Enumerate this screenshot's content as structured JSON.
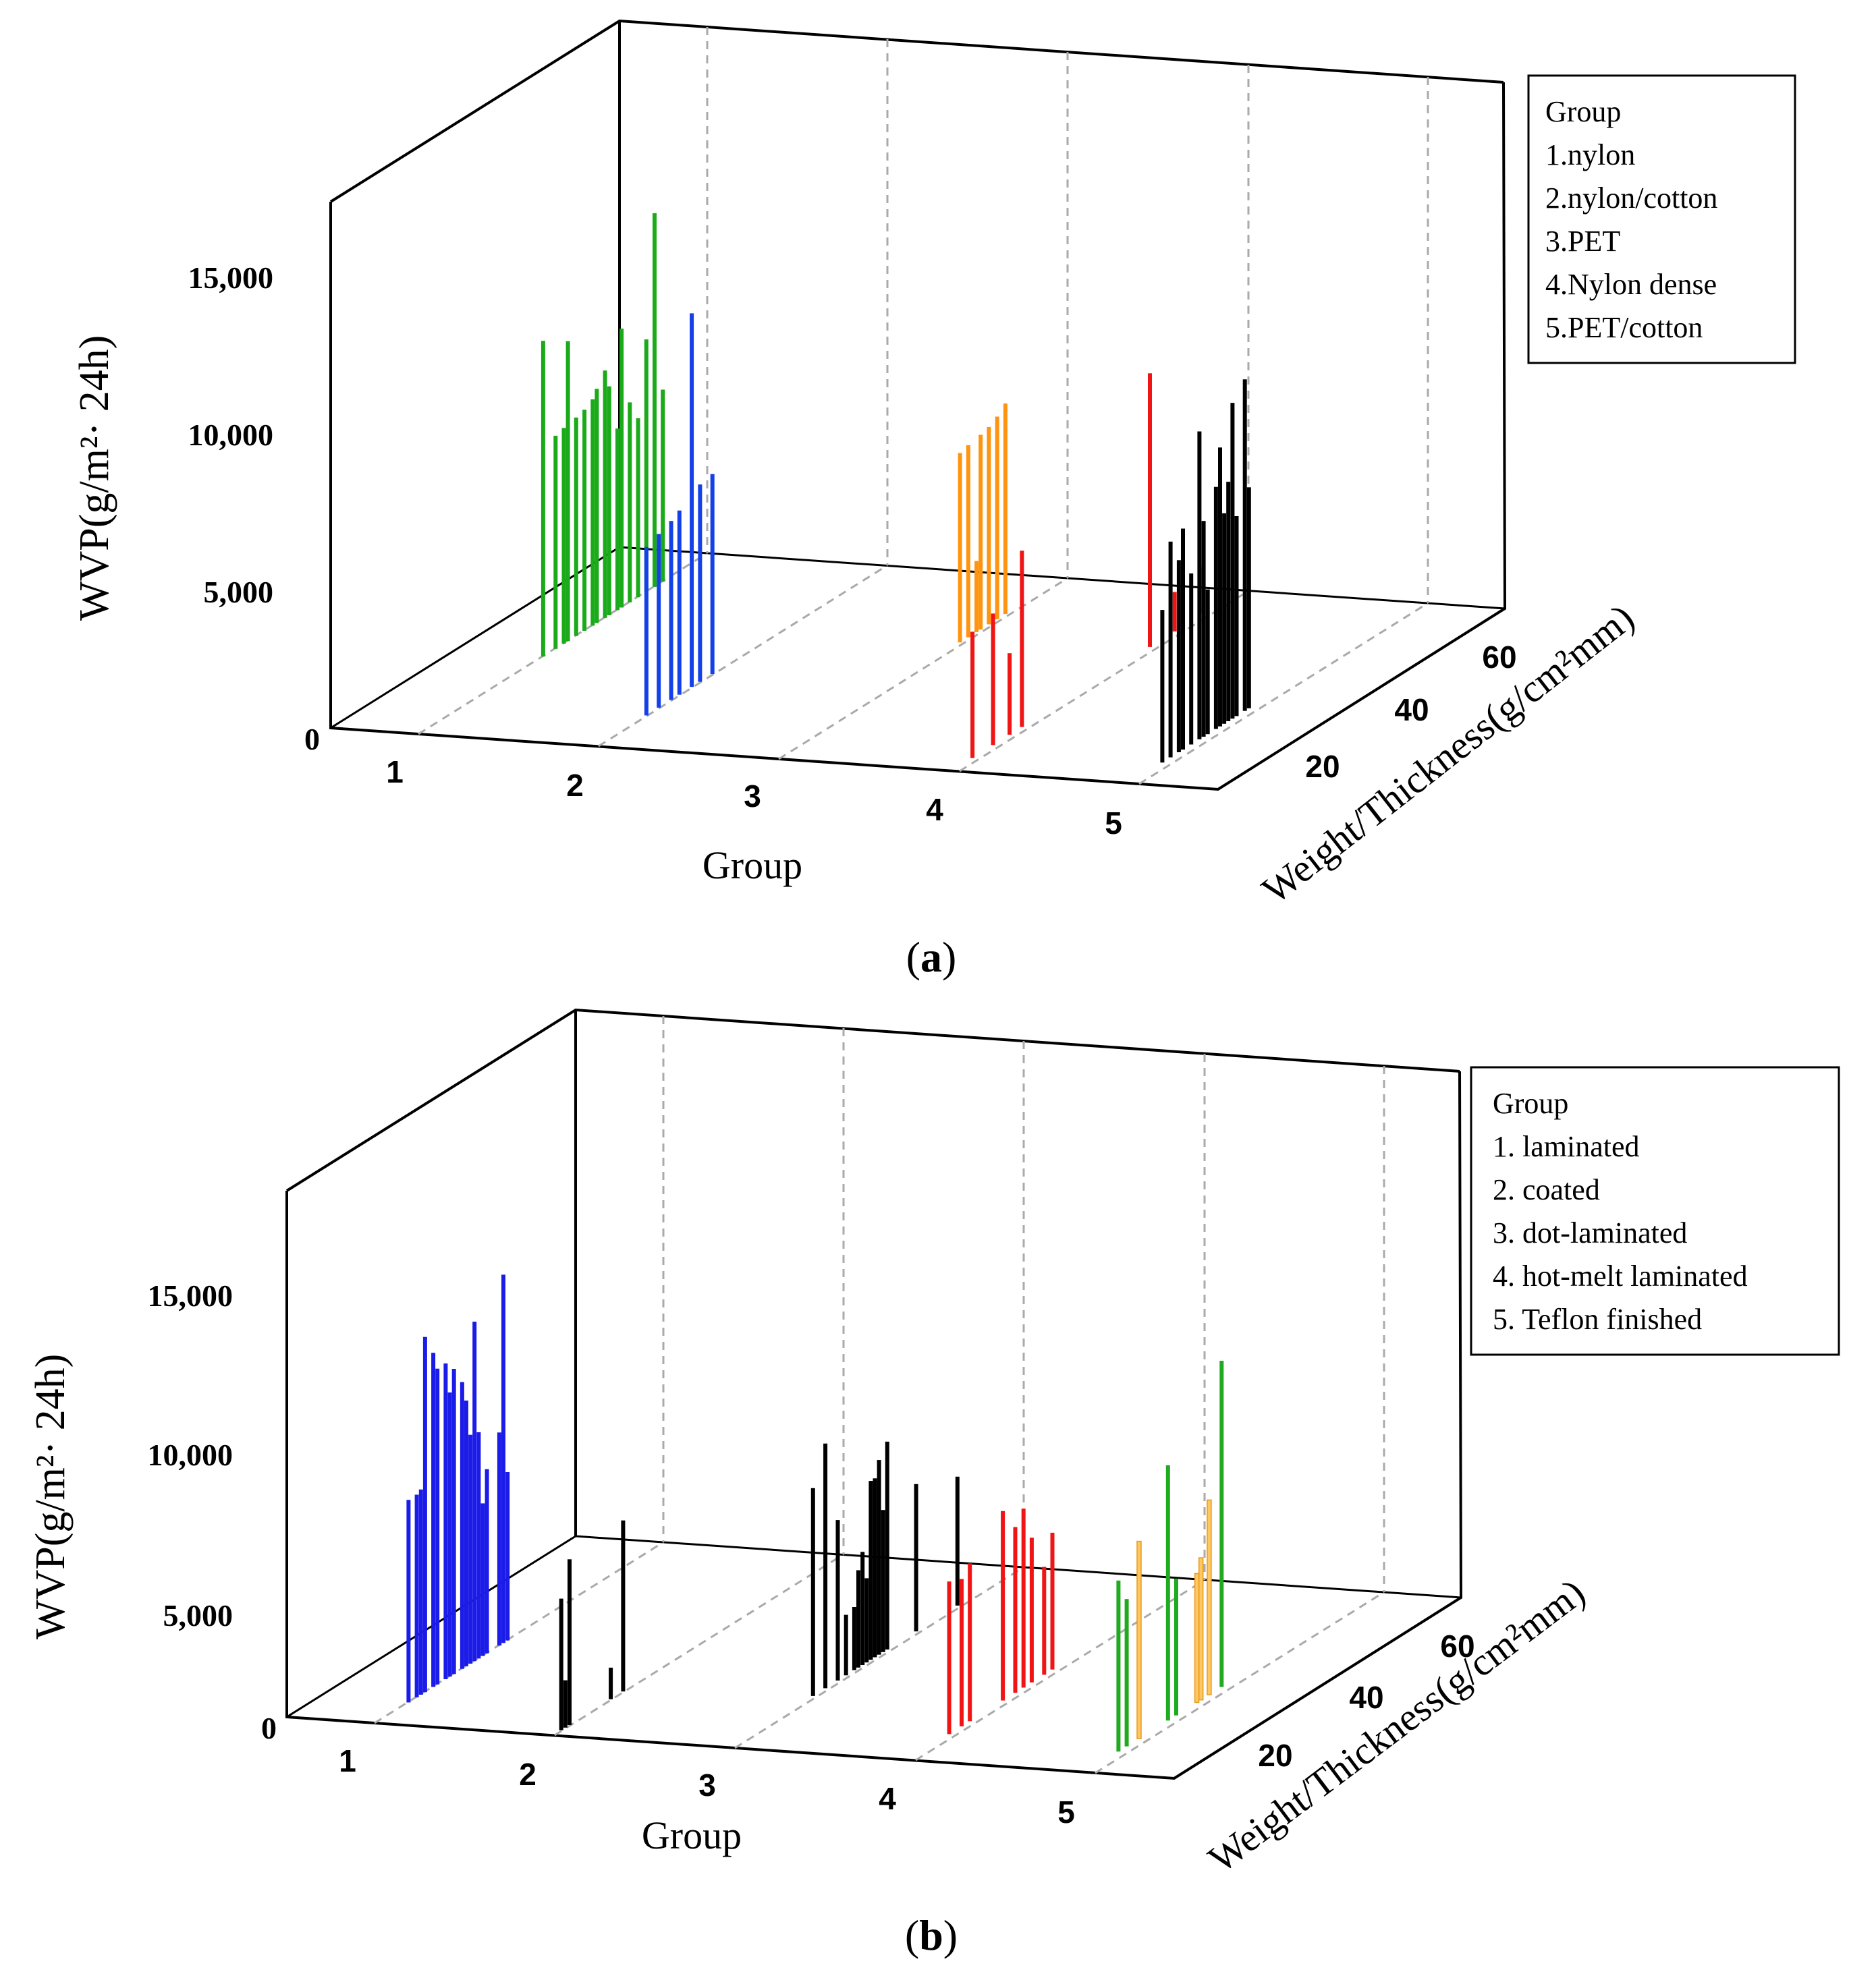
{
  "chart_data": [
    {
      "panel_label": "a",
      "type": "bar3d",
      "zlabel": "WVP(g/m²· 24h)",
      "xlabel": "Group",
      "ylabel": "Weight/Thickness(g/cm²mm)",
      "z_ticks": [
        "0",
        "5,000",
        "10,000",
        "15,000"
      ],
      "x_ticks": [
        "1",
        "2",
        "3",
        "4",
        "5"
      ],
      "y_ticks": [
        "20",
        "40",
        "60"
      ],
      "zlim": [
        0,
        20000
      ],
      "ylim": [
        0,
        70
      ],
      "legend": {
        "position": "top-right",
        "title": "Group",
        "items": [
          "1.nylon",
          "2.nylon/cotton",
          "3.PET",
          "4.Nylon dense",
          "5.PET/cotton"
        ]
      },
      "series": [
        {
          "name": "1.nylon",
          "group": 1,
          "color": "#1aaa1a",
          "points": [
            [
              30,
              12000
            ],
            [
              33,
              8100
            ],
            [
              35,
              8200
            ],
            [
              36,
              11400
            ],
            [
              38,
              8300
            ],
            [
              40,
              8400
            ],
            [
              42,
              8600
            ],
            [
              43,
              8900
            ],
            [
              45,
              9400
            ],
            [
              46,
              8700
            ],
            [
              48,
              6900
            ],
            [
              49,
              10600
            ],
            [
              51,
              7600
            ],
            [
              53,
              6800
            ],
            [
              55,
              9600
            ],
            [
              57,
              14200
            ],
            [
              59,
              7300
            ]
          ]
        },
        {
          "name": "2.nylon/cotton",
          "group": 2,
          "color": "#1340e8",
          "points": [
            [
              12,
              6400
            ],
            [
              15,
              6600
            ],
            [
              18,
              6800
            ],
            [
              20,
              7000
            ],
            [
              23,
              14200
            ],
            [
              25,
              7500
            ],
            [
              28,
              7600
            ]
          ]
        },
        {
          "name": "3.PET",
          "group": 3,
          "color": "#ff9410",
          "points": [
            [
              45,
              7200
            ],
            [
              47,
              7300
            ],
            [
              49,
              2700
            ],
            [
              50,
              7400
            ],
            [
              52,
              7500
            ],
            [
              54,
              7700
            ],
            [
              56,
              8000
            ]
          ]
        },
        {
          "name": "4.Nylon dense",
          "group": 4,
          "color": "#f01414",
          "points": [
            [
              5,
              4800
            ],
            [
              10,
              5000
            ],
            [
              14,
              3100
            ],
            [
              17,
              6700
            ],
            [
              48,
              10400
            ],
            [
              54,
              1500
            ],
            [
              56,
              1400
            ],
            [
              61,
              1800
            ]
          ]
        },
        {
          "name": "5.PET/cotton",
          "group": 5,
          "color": "#000000",
          "points": [
            [
              8,
              5800
            ],
            [
              10,
              8200
            ],
            [
              12,
              7300
            ],
            [
              13,
              8400
            ],
            [
              15,
              6500
            ],
            [
              17,
              11700
            ],
            [
              18,
              8200
            ],
            [
              19,
              5500
            ],
            [
              21,
              9200
            ],
            [
              22,
              10600
            ],
            [
              23,
              8000
            ],
            [
              24,
              9100
            ],
            [
              25,
              12000
            ],
            [
              26,
              7600
            ],
            [
              28,
              12600
            ],
            [
              29,
              8400
            ]
          ]
        }
      ]
    },
    {
      "panel_label": "b",
      "type": "bar3d",
      "zlabel": "WVP(g/m²· 24h)",
      "xlabel": "Group",
      "ylabel": "Weight/Thickness(g/cm²mm)",
      "z_ticks": [
        "0",
        "5,000",
        "10,000",
        "15,000"
      ],
      "x_ticks": [
        "1",
        "2",
        "3",
        "4",
        "5"
      ],
      "y_ticks": [
        "20",
        "40",
        "60"
      ],
      "zlim": [
        0,
        20000
      ],
      "ylim": [
        0,
        70
      ],
      "legend": {
        "position": "top-right",
        "title": "Group",
        "items": [
          "1. laminated",
          "2. coated",
          "3. dot-laminated",
          "4. hot-melt laminated",
          "5. Teflon finished"
        ]
      },
      "series": [
        {
          "name": "1. laminated",
          "group": 1,
          "color": "#1c1ce8",
          "points": [
            [
              8,
              7700
            ],
            [
              10,
              7700
            ],
            [
              11,
              7800
            ],
            [
              12,
              13500
            ],
            [
              14,
              12700
            ],
            [
              15,
              12000
            ],
            [
              17,
              12000
            ],
            [
              18,
              10800
            ],
            [
              19,
              11600
            ],
            [
              21,
              10900
            ],
            [
              22,
              10100
            ],
            [
              23,
              8700
            ],
            [
              24,
              12900
            ],
            [
              25,
              8600
            ],
            [
              26,
              5800
            ],
            [
              27,
              7000
            ],
            [
              30,
              8100
            ],
            [
              31,
              14000
            ],
            [
              32,
              6400
            ]
          ]
        },
        {
          "name": "2. coated",
          "group": 2,
          "color": "#000000",
          "points": [
            [
              2,
              5000
            ],
            [
              3,
              1800
            ],
            [
              4,
              6300
            ],
            [
              14,
              1200
            ],
            [
              17,
              6500
            ]
          ]
        },
        {
          "name": "3. dot-laminated",
          "group": 3,
          "color": "#000000",
          "points": [
            [
              20,
              7900
            ],
            [
              23,
              9300
            ],
            [
              26,
              6100
            ],
            [
              28,
              2300
            ],
            [
              30,
              2400
            ],
            [
              31,
              3700
            ],
            [
              32,
              4300
            ],
            [
              33,
              3200
            ],
            [
              34,
              6800
            ],
            [
              35,
              6800
            ],
            [
              36,
              7400
            ],
            [
              37,
              5400
            ],
            [
              38,
              7900
            ],
            [
              45,
              5600
            ],
            [
              55,
              4900
            ]
          ]
        },
        {
          "name": "4. hot-melt laminated",
          "group": 4,
          "color": "#f01414",
          "points": [
            [
              10,
              5800
            ],
            [
              13,
              5600
            ],
            [
              15,
              6000
            ],
            [
              23,
              7200
            ],
            [
              26,
              6300
            ],
            [
              28,
              6800
            ],
            [
              30,
              5500
            ],
            [
              33,
              4100
            ],
            [
              35,
              5200
            ]
          ]
        },
        {
          "name": "5. Teflon finished",
          "group": 5,
          "color": "#20aa20",
          "points": [
            [
              8,
              6500
            ],
            [
              10,
              5600
            ],
            [
              20,
              9700
            ],
            [
              22,
              5200
            ],
            [
              33,
              12400
            ]
          ]
        },
        {
          "name": "5. Teflon finished",
          "group": 5,
          "color": "#ffc864",
          "points": [
            [
              13,
              7500
            ],
            [
              27,
              4900
            ],
            [
              28,
              5400
            ],
            [
              30,
              7400
            ]
          ]
        }
      ]
    }
  ]
}
